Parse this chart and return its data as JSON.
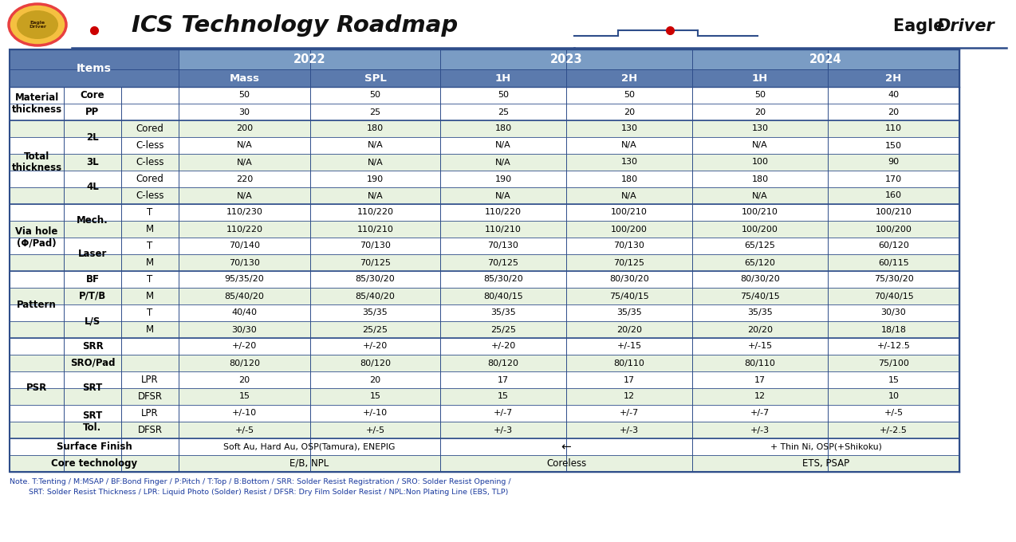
{
  "title": "ICS Technology Roadmap",
  "bg_color": "#ffffff",
  "header_bg": "#5b7aad",
  "header_text": "#ffffff",
  "subheader_bg": "#7a9cc4",
  "row_light": "#e8f2e0",
  "row_white": "#ffffff",
  "border_color": "#2e4d8a",
  "note_color": "#1a3a9e",
  "note_line1": "Note. T:Tenting / M:MSAP / BF:Bond Finger / P:Pitch / T:Top / B:Bottom / SRR: Solder Resist Registration / SRO: Solder Resist Opening /",
  "note_line2": "        SRT: Solder Resist Thickness / LPR: Liquid Photo (Solder) Resist / DFSR: Dry Film Solder Resist / NPL:Non Plating Line (EBS, TLP)",
  "col2_data": [
    "",
    "",
    "Cored",
    "C-less",
    "C-less",
    "Cored",
    "C-less",
    "T",
    "M",
    "T",
    "M",
    "T",
    "M",
    "T",
    "M",
    "",
    "",
    "LPR",
    "DFSR",
    "LPR",
    "DFSR"
  ],
  "col0_merges": [
    [
      0,
      1,
      "Material\nthickness"
    ],
    [
      2,
      6,
      "Total\nthickness"
    ],
    [
      7,
      10,
      "Via hole\n(Φ/Pad)"
    ],
    [
      11,
      14,
      "Pattern"
    ],
    [
      15,
      20,
      "PSR"
    ]
  ],
  "col1_merges": [
    [
      0,
      0,
      "Core"
    ],
    [
      1,
      1,
      "PP"
    ],
    [
      2,
      3,
      "2L"
    ],
    [
      4,
      4,
      "3L"
    ],
    [
      5,
      6,
      "4L"
    ],
    [
      7,
      8,
      "Mech."
    ],
    [
      9,
      10,
      "Laser"
    ],
    [
      11,
      11,
      "BF"
    ],
    [
      12,
      12,
      "P/T/B"
    ],
    [
      13,
      14,
      "L/S"
    ],
    [
      15,
      15,
      "SRR"
    ],
    [
      16,
      16,
      "SRO/Pad"
    ],
    [
      17,
      18,
      "SRT"
    ],
    [
      19,
      20,
      "SRT\nTol."
    ]
  ],
  "data_vals": [
    [
      "50",
      "50",
      "50",
      "50",
      "50",
      "40"
    ],
    [
      "30",
      "25",
      "25",
      "20",
      "20",
      "20"
    ],
    [
      "200",
      "180",
      "180",
      "130",
      "130",
      "110"
    ],
    [
      "N/A",
      "N/A",
      "N/A",
      "N/A",
      "N/A",
      "150"
    ],
    [
      "N/A",
      "N/A",
      "N/A",
      "130",
      "100",
      "90"
    ],
    [
      "220",
      "190",
      "190",
      "180",
      "180",
      "170"
    ],
    [
      "N/A",
      "N/A",
      "N/A",
      "N/A",
      "N/A",
      "160"
    ],
    [
      "110/230",
      "110/220",
      "110/220",
      "100/210",
      "100/210",
      "100/210"
    ],
    [
      "110/220",
      "110/210",
      "110/210",
      "100/200",
      "100/200",
      "100/200"
    ],
    [
      "70/140",
      "70/130",
      "70/130",
      "70/130",
      "65/125",
      "60/120"
    ],
    [
      "70/130",
      "70/125",
      "70/125",
      "70/125",
      "65/120",
      "60/115"
    ],
    [
      "95/35/20",
      "85/30/20",
      "85/30/20",
      "80/30/20",
      "80/30/20",
      "75/30/20"
    ],
    [
      "85/40/20",
      "85/40/20",
      "80/40/15",
      "75/40/15",
      "75/40/15",
      "70/40/15"
    ],
    [
      "40/40",
      "35/35",
      "35/35",
      "35/35",
      "35/35",
      "30/30"
    ],
    [
      "30/30",
      "25/25",
      "25/25",
      "20/20",
      "20/20",
      "18/18"
    ],
    [
      "+/-20",
      "+/-20",
      "+/-20",
      "+/-15",
      "+/-15",
      "+/-12.5"
    ],
    [
      "80/120",
      "80/120",
      "80/120",
      "80/110",
      "80/110",
      "75/100"
    ],
    [
      "20",
      "20",
      "17",
      "17",
      "17",
      "15"
    ],
    [
      "15",
      "15",
      "15",
      "12",
      "12",
      "10"
    ],
    [
      "+/-10",
      "+/-10",
      "+/-7",
      "+/-7",
      "+/-7",
      "+/-5"
    ],
    [
      "+/-5",
      "+/-5",
      "+/-3",
      "+/-3",
      "+/-3",
      "+/-2.5"
    ]
  ],
  "row_bgs": [
    "w",
    "w",
    "l",
    "w",
    "l",
    "w",
    "l",
    "w",
    "l",
    "w",
    "l",
    "w",
    "l",
    "w",
    "l",
    "w",
    "l",
    "w",
    "l",
    "w",
    "l",
    "w",
    "l"
  ],
  "sf_text": [
    "Surface Finish",
    "Soft Au, Hard Au, OSP(Tamura), ENEPIG",
    "←",
    "+ Thin Ni, OSP(+Shikoku)"
  ],
  "ct_text": [
    "Core technology",
    "E/B, NPL",
    "Coreless",
    "ETS, PSAP"
  ]
}
